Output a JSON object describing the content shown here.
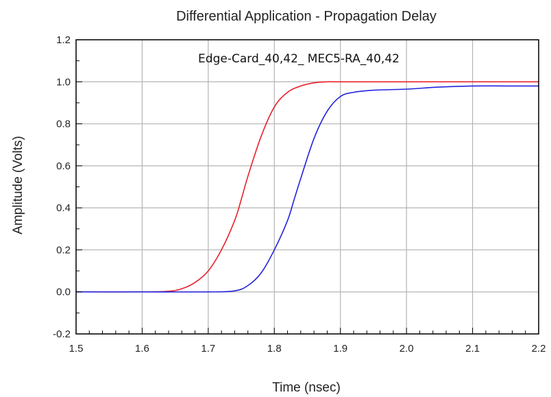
{
  "chart_data": {
    "type": "line",
    "title": "Differential Application - Propagation Delay",
    "xlabel": "Time (nsec)",
    "ylabel": "Amplitude (Volts)",
    "annotation": "Edge-Card_40,42_ MEC5-RA_40,42",
    "xlim": [
      1.5,
      2.2
    ],
    "ylim": [
      -0.2,
      1.2
    ],
    "x_ticks": [
      1.5,
      1.6,
      1.7,
      1.8,
      1.9,
      2.0,
      2.1,
      2.2
    ],
    "x_tick_labels": [
      "1.5",
      "1.6",
      "1.7",
      "1.8",
      "1.9",
      "2.0",
      "2.1",
      "2.2"
    ],
    "y_ticks": [
      -0.2,
      0.0,
      0.2,
      0.4,
      0.6,
      0.8,
      1.0,
      1.2
    ],
    "y_tick_labels": [
      "-0.2",
      "0.0",
      "0.2",
      "0.4",
      "0.6",
      "0.8",
      "1.0",
      "1.2"
    ],
    "grid": true,
    "series": [
      {
        "color": "#e8202a",
        "x": [
          1.5,
          1.6,
          1.64,
          1.66,
          1.68,
          1.7,
          1.72,
          1.74,
          1.75,
          1.76,
          1.78,
          1.8,
          1.82,
          1.84,
          1.86,
          1.88,
          1.9,
          2.0,
          2.1,
          2.2
        ],
        "y": [
          0.0,
          0.0,
          0.003,
          0.015,
          0.045,
          0.1,
          0.2,
          0.34,
          0.44,
          0.55,
          0.74,
          0.88,
          0.95,
          0.98,
          0.995,
          1.0,
          1.0,
          1.0,
          1.0,
          1.0
        ]
      },
      {
        "color": "#2222dd",
        "x": [
          1.5,
          1.6,
          1.7,
          1.74,
          1.76,
          1.78,
          1.8,
          1.82,
          1.83,
          1.84,
          1.86,
          1.88,
          1.9,
          1.92,
          1.95,
          2.0,
          2.05,
          2.1,
          2.15,
          2.2
        ],
        "y": [
          0.0,
          0.0,
          0.0,
          0.005,
          0.03,
          0.09,
          0.2,
          0.34,
          0.44,
          0.54,
          0.73,
          0.86,
          0.93,
          0.95,
          0.96,
          0.965,
          0.975,
          0.98,
          0.98,
          0.98
        ]
      }
    ]
  }
}
